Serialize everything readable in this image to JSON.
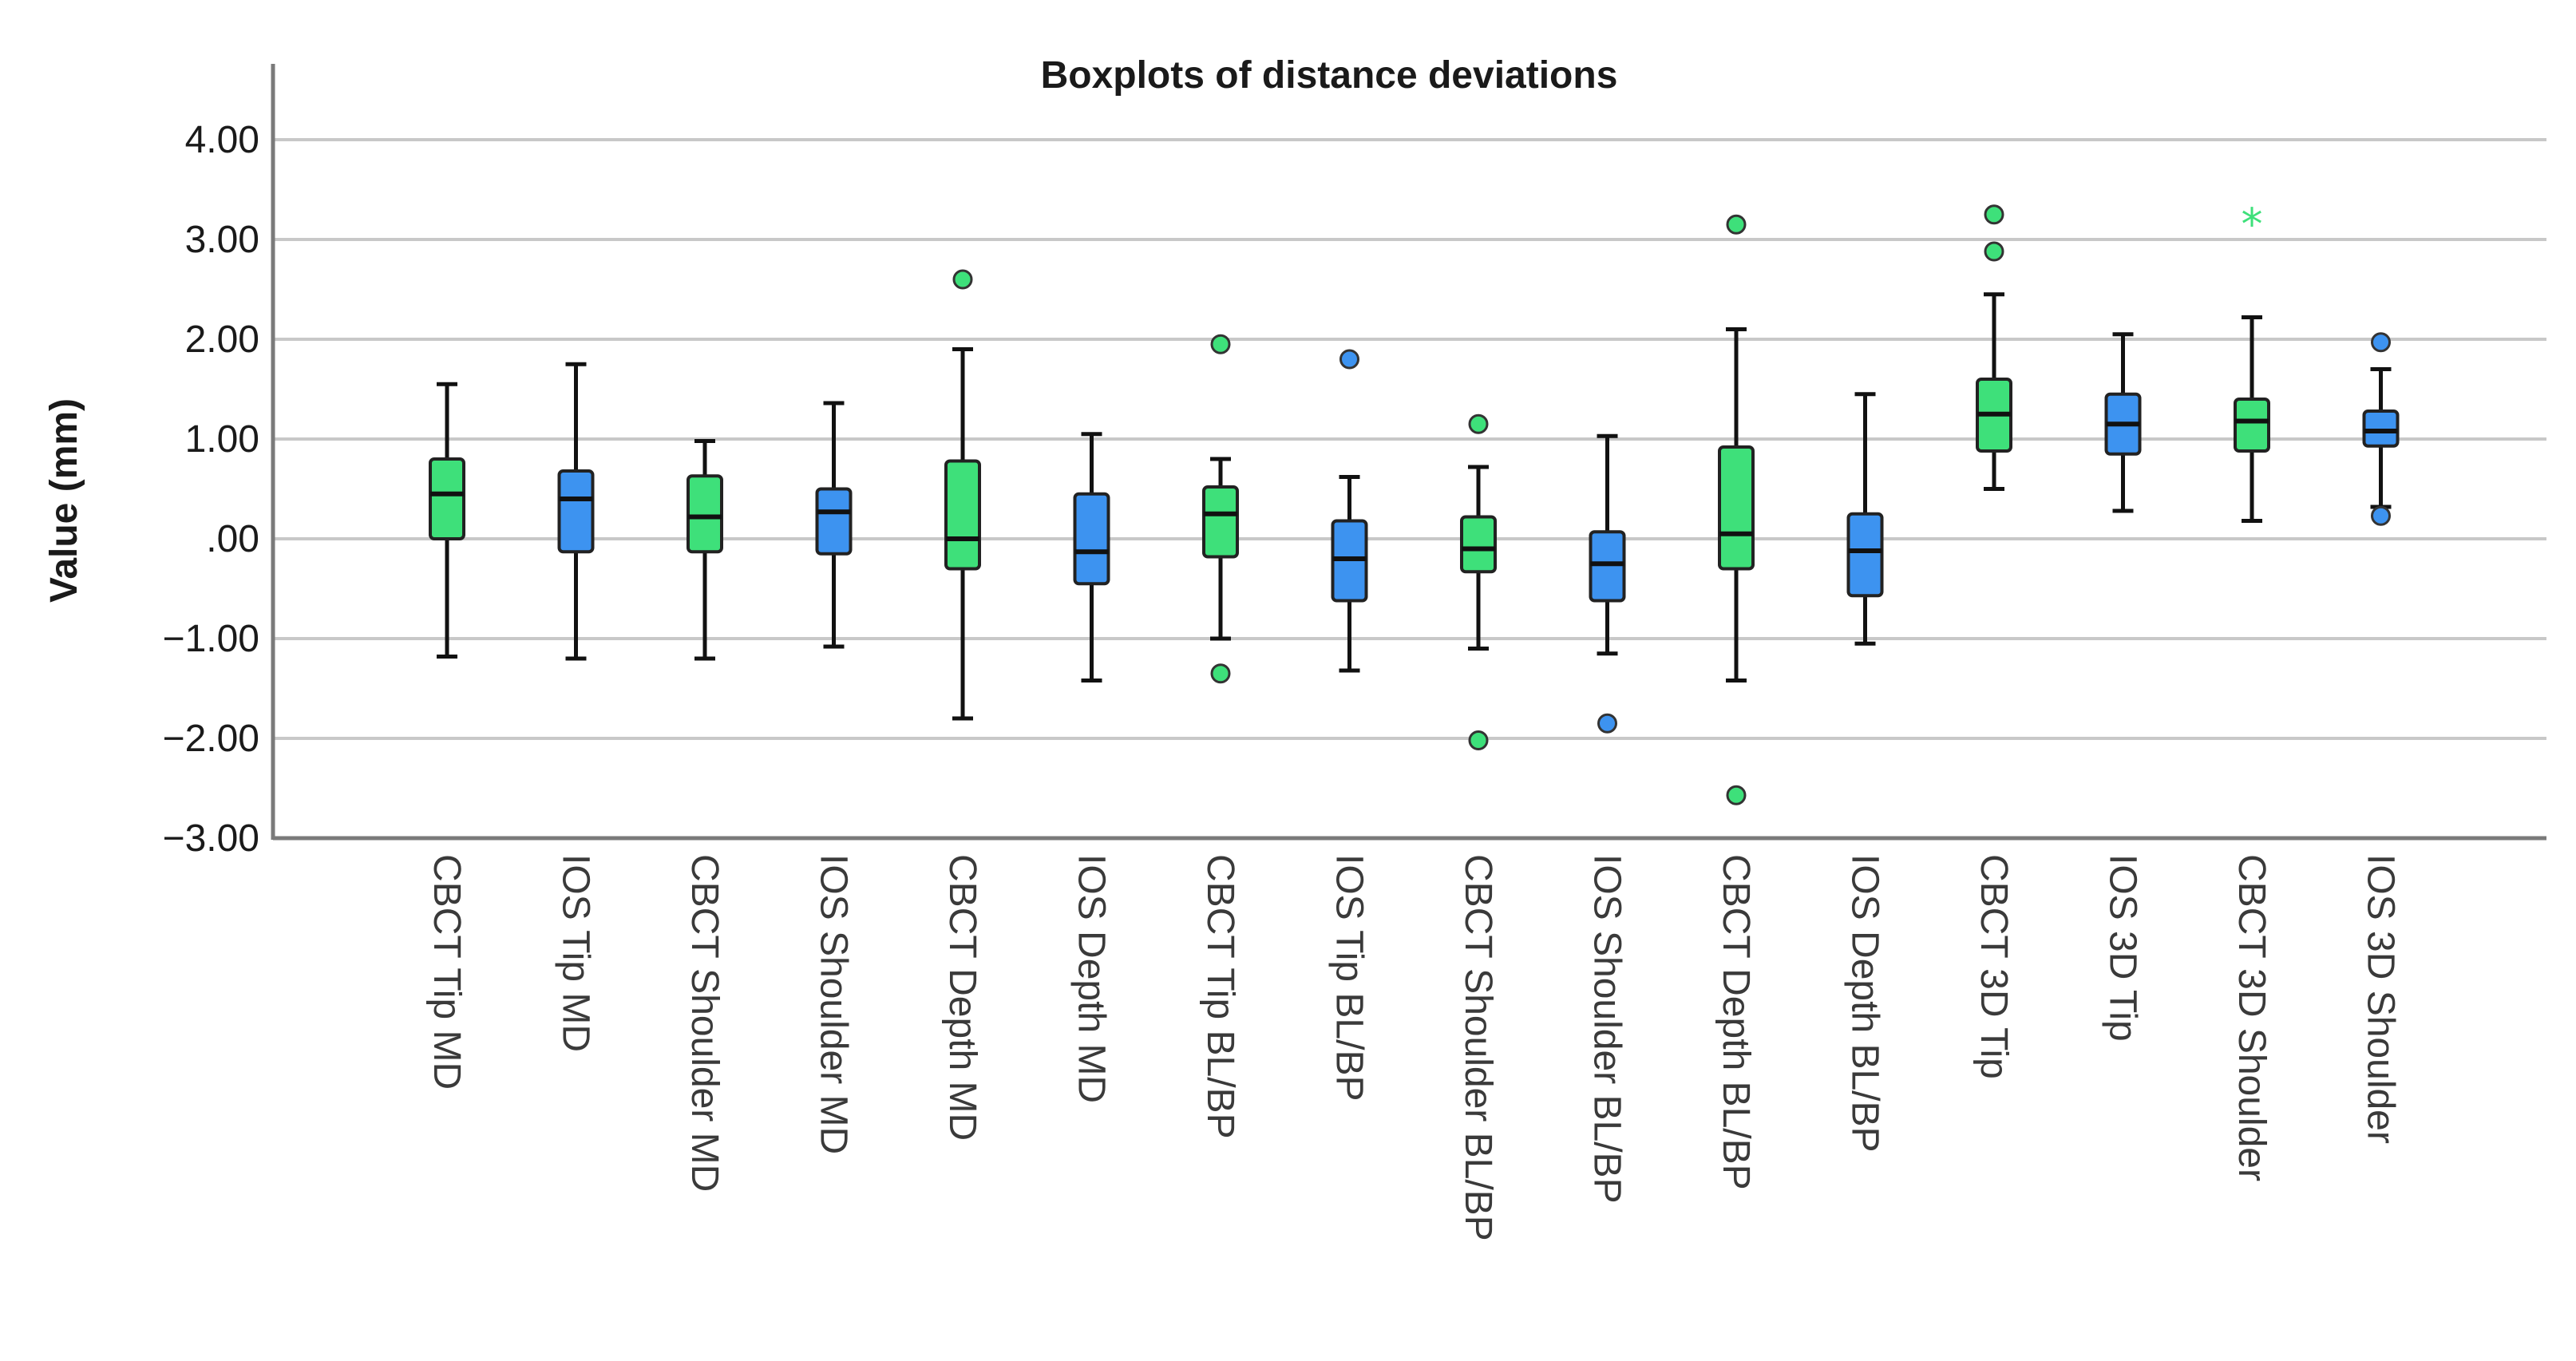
{
  "chart_data": {
    "type": "boxplot",
    "title": "Boxplots of distance deviations",
    "xlabel": "",
    "ylabel": "Value (mm)",
    "ylim": [
      -3.0,
      4.0
    ],
    "yticks": [
      4.0,
      3.0,
      2.0,
      1.0,
      0.0,
      -1.0,
      -2.0,
      -3.0
    ],
    "ytick_labels": [
      "4.00",
      "3.00",
      "2.00",
      "1.00",
      ".00",
      "−1.00",
      "−2.00",
      "−3.00"
    ],
    "grid": true,
    "colors": {
      "CBCT": "#3ee07a",
      "IOS": "#3d93f0",
      "whisker": "#111111",
      "grid": "#c8c8c8",
      "axis": "#7a7a7a"
    },
    "boxes": [
      {
        "label": "CBCT Tip MD",
        "group": "CBCT",
        "whisker_low": -1.18,
        "q1": 0.0,
        "median": 0.45,
        "q3": 0.8,
        "whisker_high": 1.55,
        "outliers": [],
        "extremes": []
      },
      {
        "label": "IOS Tip MD",
        "group": "IOS",
        "whisker_low": -1.2,
        "q1": -0.13,
        "median": 0.4,
        "q3": 0.68,
        "whisker_high": 1.75,
        "outliers": [],
        "extremes": []
      },
      {
        "label": "CBCT Shoulder MD",
        "group": "CBCT",
        "whisker_low": -1.2,
        "q1": -0.13,
        "median": 0.22,
        "q3": 0.63,
        "whisker_high": 0.98,
        "outliers": [],
        "extremes": []
      },
      {
        "label": "IOS Shoulder MD",
        "group": "IOS",
        "whisker_low": -1.08,
        "q1": -0.15,
        "median": 0.27,
        "q3": 0.5,
        "whisker_high": 1.36,
        "outliers": [],
        "extremes": []
      },
      {
        "label": "CBCT Depth MD",
        "group": "CBCT",
        "whisker_low": -1.8,
        "q1": -0.3,
        "median": 0.0,
        "q3": 0.78,
        "whisker_high": 1.9,
        "outliers": [
          2.6
        ],
        "extremes": []
      },
      {
        "label": "IOS Depth MD",
        "group": "IOS",
        "whisker_low": -1.42,
        "q1": -0.45,
        "median": -0.13,
        "q3": 0.45,
        "whisker_high": 1.05,
        "outliers": [],
        "extremes": []
      },
      {
        "label": "CBCT Tip BL/BP",
        "group": "CBCT",
        "whisker_low": -1.0,
        "q1": -0.18,
        "median": 0.25,
        "q3": 0.52,
        "whisker_high": 0.8,
        "outliers": [
          1.95,
          -1.35
        ],
        "extremes": []
      },
      {
        "label": "IOS Tip BL/BP",
        "group": "IOS",
        "whisker_low": -1.32,
        "q1": -0.62,
        "median": -0.2,
        "q3": 0.18,
        "whisker_high": 0.62,
        "outliers": [
          1.8
        ],
        "extremes": []
      },
      {
        "label": "CBCT Shoulder BL/BP",
        "group": "CBCT",
        "whisker_low": -1.1,
        "q1": -0.33,
        "median": -0.1,
        "q3": 0.22,
        "whisker_high": 0.72,
        "outliers": [
          1.15,
          -2.02
        ],
        "extremes": []
      },
      {
        "label": "IOS Shoulder BL/BP",
        "group": "IOS",
        "whisker_low": -1.15,
        "q1": -0.62,
        "median": -0.25,
        "q3": 0.07,
        "whisker_high": 1.03,
        "outliers": [
          -1.85
        ],
        "extremes": []
      },
      {
        "label": "CBCT Depth BL/BP",
        "group": "CBCT",
        "whisker_low": -1.42,
        "q1": -0.3,
        "median": 0.05,
        "q3": 0.92,
        "whisker_high": 2.1,
        "outliers": [
          3.15,
          -2.57
        ],
        "extremes": []
      },
      {
        "label": "IOS Depth BL/BP",
        "group": "IOS",
        "whisker_low": -1.05,
        "q1": -0.57,
        "median": -0.12,
        "q3": 0.25,
        "whisker_high": 1.45,
        "outliers": [],
        "extremes": []
      },
      {
        "label": "CBCT 3D Tip",
        "group": "CBCT",
        "whisker_low": 0.5,
        "q1": 0.88,
        "median": 1.25,
        "q3": 1.6,
        "whisker_high": 2.45,
        "outliers": [
          3.25,
          2.88
        ],
        "extremes": []
      },
      {
        "label": "IOS 3D Tip",
        "group": "IOS",
        "whisker_low": 0.28,
        "q1": 0.85,
        "median": 1.15,
        "q3": 1.45,
        "whisker_high": 2.05,
        "outliers": [],
        "extremes": []
      },
      {
        "label": "CBCT 3D Shoulder",
        "group": "CBCT",
        "whisker_low": 0.18,
        "q1": 0.88,
        "median": 1.18,
        "q3": 1.4,
        "whisker_high": 2.22,
        "outliers": [],
        "extremes": [
          3.18
        ]
      },
      {
        "label": "IOS 3D Shoulder",
        "group": "IOS",
        "whisker_low": 0.32,
        "q1": 0.93,
        "median": 1.08,
        "q3": 1.28,
        "whisker_high": 1.7,
        "outliers": [
          1.97,
          0.23
        ],
        "extremes": []
      }
    ]
  }
}
